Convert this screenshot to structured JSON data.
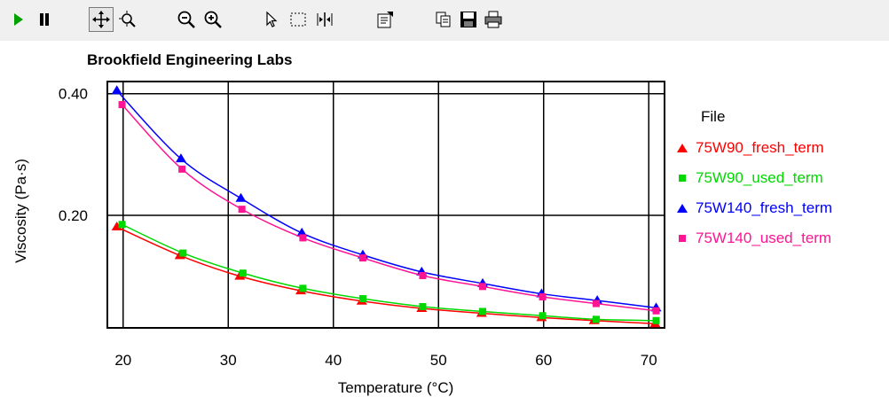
{
  "toolbar": {
    "buttons": [
      {
        "icon": "play-icon",
        "tooltip": ""
      },
      {
        "icon": "pause-icon",
        "tooltip": ""
      },
      {
        "icon": "pan-icon",
        "tooltip": ""
      },
      {
        "icon": "zoom-area-icon",
        "tooltip": ""
      },
      {
        "icon": "zoom-out-icon",
        "tooltip": ""
      },
      {
        "icon": "zoom-in-icon",
        "tooltip": ""
      },
      {
        "icon": "pointer-icon",
        "tooltip": ""
      },
      {
        "icon": "select-rect-icon",
        "tooltip": ""
      },
      {
        "icon": "split-icon",
        "tooltip": ""
      },
      {
        "icon": "properties-icon",
        "tooltip": ""
      },
      {
        "icon": "copy-icon",
        "tooltip": ""
      },
      {
        "icon": "save-icon",
        "tooltip": ""
      },
      {
        "icon": "print-icon",
        "tooltip": ""
      }
    ]
  },
  "chart_data": {
    "type": "scatter",
    "title": "Brookfield Engineering Labs",
    "xlabel": "Temperature (°C)",
    "ylabel": "Viscosity (Pa·s)",
    "xlim": [
      18.5,
      71.5
    ],
    "ylim": [
      0.015,
      0.42
    ],
    "x_ticks": [
      20,
      30,
      40,
      50,
      60,
      70
    ],
    "y_ticks": [
      0.4,
      0.2
    ],
    "x_tick_labels": [
      "20",
      "30",
      "40",
      "50",
      "60",
      "70"
    ],
    "y_tick_labels": [
      "0.40",
      "0.20"
    ],
    "grid": true,
    "legend_title": "File",
    "legend_position": "right",
    "series": [
      {
        "name": "75W90_fresh_term",
        "color": "#ff0000",
        "marker": "triangle",
        "x": [
          19.4,
          25.4,
          31.1,
          36.9,
          42.7,
          48.4,
          54.1,
          59.8,
          64.8,
          70.6
        ],
        "y": [
          0.181,
          0.134,
          0.1,
          0.076,
          0.059,
          0.047,
          0.039,
          0.032,
          0.027,
          0.022
        ]
      },
      {
        "name": "75W90_used_term",
        "color": "#00d800",
        "marker": "square",
        "x": [
          19.9,
          25.7,
          31.4,
          37.1,
          42.8,
          48.5,
          54.2,
          59.9,
          65.0,
          70.7
        ],
        "y": [
          0.185,
          0.138,
          0.105,
          0.08,
          0.063,
          0.05,
          0.042,
          0.035,
          0.029,
          0.027
        ]
      },
      {
        "name": "75W140_fresh_term",
        "color": "#0000ff",
        "marker": "triangle",
        "x": [
          19.4,
          25.5,
          31.2,
          37.0,
          42.8,
          48.4,
          54.2,
          59.8,
          65.1,
          70.7
        ],
        "y": [
          0.405,
          0.293,
          0.228,
          0.171,
          0.135,
          0.107,
          0.088,
          0.071,
          0.06,
          0.048
        ]
      },
      {
        "name": "75W140_used_term",
        "color": "#ff1493",
        "marker": "square",
        "x": [
          19.9,
          25.6,
          31.3,
          37.1,
          42.8,
          48.5,
          54.2,
          59.9,
          65.0,
          70.7
        ],
        "y": [
          0.382,
          0.276,
          0.21,
          0.163,
          0.13,
          0.101,
          0.083,
          0.066,
          0.055,
          0.043
        ]
      }
    ]
  }
}
